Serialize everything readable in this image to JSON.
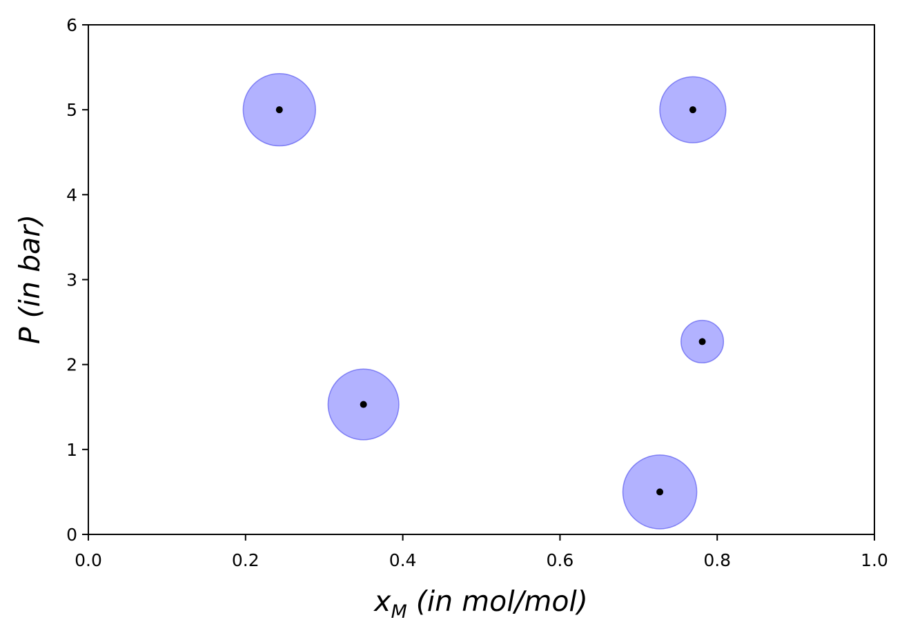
{
  "chart_data": {
    "type": "scatter",
    "title": "",
    "xlabel": "x",
    "xlabel_subscript": "M",
    "xlabel_unit": " (in mol/mol)",
    "ylabel": "P (in bar)",
    "xlim": [
      0,
      1
    ],
    "ylim": [
      0,
      6
    ],
    "x_ticks": [
      0.0,
      0.2,
      0.4,
      0.6,
      0.8,
      1.0
    ],
    "x_tick_labels": [
      "0.0",
      "0.2",
      "0.4",
      "0.6",
      "0.8",
      "1.0"
    ],
    "y_ticks": [
      0,
      1,
      2,
      3,
      4,
      5,
      6
    ],
    "y_tick_labels": [
      "0",
      "1",
      "2",
      "3",
      "4",
      "5",
      "6"
    ],
    "grid": false,
    "bubble_color": "#7b7bff",
    "point_color": "#000000",
    "points": [
      {
        "x": 0.243,
        "y": 5.0,
        "radius_x": 0.046
      },
      {
        "x": 0.769,
        "y": 5.0,
        "radius_x": 0.042
      },
      {
        "x": 0.781,
        "y": 2.27,
        "radius_x": 0.027
      },
      {
        "x": 0.35,
        "y": 1.53,
        "radius_x": 0.045
      },
      {
        "x": 0.727,
        "y": 0.5,
        "radius_x": 0.047
      }
    ]
  }
}
